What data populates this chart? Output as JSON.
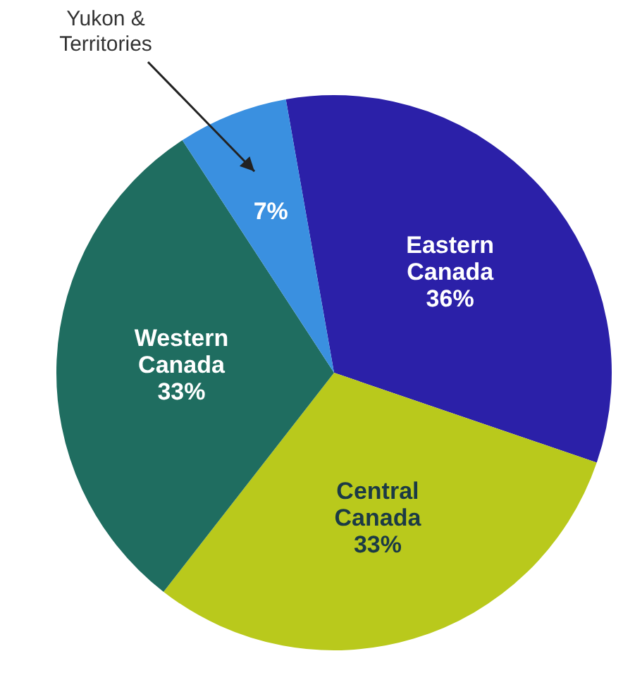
{
  "chart_data": {
    "type": "pie",
    "categories": [
      "Eastern Canada",
      "Central Canada",
      "Western Canada",
      "Yukon & Territories"
    ],
    "values": [
      36,
      33,
      33,
      7
    ],
    "value_labels": [
      "36%",
      "33%",
      "33%",
      "7%"
    ],
    "colors": [
      "#2b20a8",
      "#b9c91c",
      "#1f6d60",
      "#3a90e0"
    ]
  }
}
